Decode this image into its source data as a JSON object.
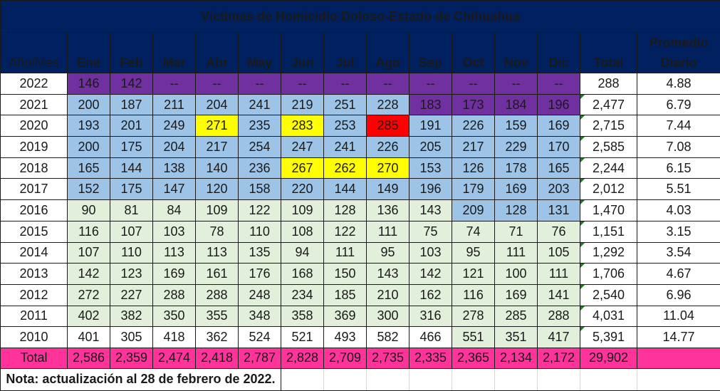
{
  "title": "Víctimas de Homicidio Doloso-Estado de Chihuahua",
  "headers": {
    "year": "Año/Mes",
    "months": [
      "Ene",
      "Feb",
      "Mar",
      "Abr",
      "May",
      "Jun",
      "Jul",
      "Ago",
      "Sep",
      "Oct",
      "Nov",
      "Dic"
    ],
    "total": "Total",
    "promedio_line1": "Promedio",
    "promedio_line2": "Diario"
  },
  "colors": {
    "header_bg": "#002060",
    "purple": "#7030a0",
    "blue": "#9dc3e6",
    "green": "#e2efda",
    "yellow_highlight": "#ffff00",
    "red_highlight": "#ff0000",
    "total_row": "#ff3399"
  },
  "rows": [
    {
      "year": "2022",
      "values": [
        "146",
        "142",
        "--",
        "--",
        "--",
        "--",
        "--",
        "--",
        "--",
        "--",
        "--",
        "--"
      ],
      "total": "288",
      "avg": "4.88",
      "fills": [
        "purple",
        "purple",
        "purple",
        "purple",
        "purple",
        "purple",
        "purple",
        "purple",
        "purple",
        "purple",
        "purple",
        "purple"
      ]
    },
    {
      "year": "2021",
      "values": [
        "200",
        "187",
        "211",
        "204",
        "241",
        "219",
        "251",
        "228",
        "183",
        "173",
        "184",
        "196"
      ],
      "total": "2,477",
      "avg": "6.79",
      "fills": [
        "blue",
        "blue",
        "blue",
        "blue",
        "blue",
        "blue",
        "blue",
        "blue",
        "purple",
        "purple",
        "purple",
        "purple"
      ]
    },
    {
      "year": "2020",
      "values": [
        "193",
        "201",
        "249",
        "271",
        "235",
        "283",
        "253",
        "285",
        "191",
        "226",
        "159",
        "169"
      ],
      "total": "2,715",
      "avg": "7.44",
      "fills": [
        "blue",
        "blue",
        "blue",
        "yellow",
        "blue",
        "yellow",
        "blue",
        "red",
        "blue",
        "blue",
        "blue",
        "blue"
      ]
    },
    {
      "year": "2019",
      "values": [
        "200",
        "175",
        "204",
        "217",
        "254",
        "247",
        "241",
        "226",
        "205",
        "217",
        "229",
        "170"
      ],
      "total": "2,585",
      "avg": "7.08",
      "fills": [
        "blue",
        "blue",
        "blue",
        "blue",
        "blue",
        "blue",
        "blue",
        "blue",
        "blue",
        "blue",
        "blue",
        "blue"
      ]
    },
    {
      "year": "2018",
      "values": [
        "165",
        "144",
        "138",
        "140",
        "236",
        "267",
        "262",
        "270",
        "153",
        "126",
        "178",
        "165"
      ],
      "total": "2,244",
      "avg": "6.15",
      "fills": [
        "blue",
        "blue",
        "blue",
        "blue",
        "blue",
        "yellow",
        "yellow",
        "yellow",
        "blue",
        "blue",
        "blue",
        "blue"
      ]
    },
    {
      "year": "2017",
      "values": [
        "152",
        "175",
        "147",
        "120",
        "158",
        "220",
        "144",
        "149",
        "196",
        "179",
        "169",
        "203"
      ],
      "total": "2,012",
      "avg": "5.51",
      "fills": [
        "blue",
        "blue",
        "blue",
        "blue",
        "blue",
        "blue",
        "blue",
        "blue",
        "blue",
        "blue",
        "blue",
        "blue"
      ]
    },
    {
      "year": "2016",
      "values": [
        "90",
        "81",
        "84",
        "109",
        "122",
        "109",
        "128",
        "136",
        "143",
        "209",
        "128",
        "131"
      ],
      "total": "1,470",
      "avg": "4.03",
      "fills": [
        "green",
        "green",
        "green",
        "green",
        "green",
        "green",
        "green",
        "green",
        "green",
        "blue",
        "blue",
        "blue"
      ]
    },
    {
      "year": "2015",
      "values": [
        "116",
        "107",
        "103",
        "78",
        "110",
        "108",
        "122",
        "111",
        "75",
        "74",
        "71",
        "76"
      ],
      "total": "1,151",
      "avg": "3.15",
      "fills": [
        "green",
        "green",
        "green",
        "green",
        "green",
        "green",
        "green",
        "green",
        "green",
        "green",
        "green",
        "green"
      ]
    },
    {
      "year": "2014",
      "values": [
        "107",
        "110",
        "113",
        "113",
        "135",
        "94",
        "111",
        "95",
        "103",
        "95",
        "111",
        "105"
      ],
      "total": "1,292",
      "avg": "3.54",
      "fills": [
        "green",
        "green",
        "green",
        "green",
        "green",
        "green",
        "green",
        "green",
        "green",
        "green",
        "green",
        "green"
      ]
    },
    {
      "year": "2013",
      "values": [
        "142",
        "123",
        "169",
        "161",
        "176",
        "168",
        "150",
        "143",
        "142",
        "121",
        "100",
        "111"
      ],
      "total": "1,706",
      "avg": "4.67",
      "fills": [
        "green",
        "green",
        "green",
        "green",
        "green",
        "green",
        "green",
        "green",
        "green",
        "green",
        "green",
        "green"
      ]
    },
    {
      "year": "2012",
      "values": [
        "272",
        "227",
        "288",
        "288",
        "248",
        "234",
        "185",
        "210",
        "162",
        "116",
        "169",
        "141"
      ],
      "total": "2,540",
      "avg": "6.96",
      "fills": [
        "green",
        "green",
        "green",
        "green",
        "green",
        "green",
        "green",
        "green",
        "green",
        "green",
        "green",
        "green"
      ]
    },
    {
      "year": "2011",
      "values": [
        "402",
        "382",
        "350",
        "355",
        "348",
        "358",
        "369",
        "300",
        "316",
        "278",
        "285",
        "288"
      ],
      "total": "4,031",
      "avg": "11.04",
      "fills": [
        "green",
        "green",
        "green",
        "green",
        "green",
        "green",
        "green",
        "green",
        "green",
        "green",
        "green",
        "green"
      ]
    },
    {
      "year": "2010",
      "values": [
        "401",
        "305",
        "418",
        "362",
        "524",
        "521",
        "493",
        "582",
        "466",
        "551",
        "351",
        "417"
      ],
      "total": "5,391",
      "avg": "14.77",
      "fills": [
        "white",
        "white",
        "white",
        "white",
        "white",
        "white",
        "white",
        "white",
        "white",
        "green",
        "green",
        "green"
      ]
    }
  ],
  "totals": {
    "label": "Total",
    "values": [
      "2,586",
      "2,359",
      "2,474",
      "2,418",
      "2,787",
      "2,828",
      "2,709",
      "2,735",
      "2,335",
      "2,365",
      "2,134",
      "2,172"
    ],
    "grand_total": "29,902",
    "avg": ""
  },
  "note": "Nota: actualización al 28 de febrero de 2022."
}
